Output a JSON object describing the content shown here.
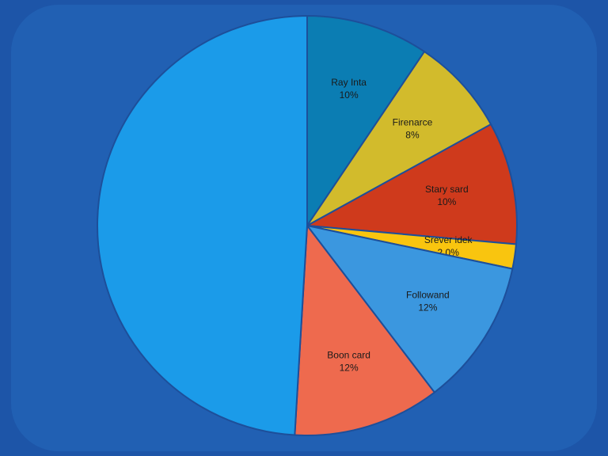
{
  "chart_data": {
    "type": "pie",
    "categories": [
      "Ray Inta",
      "Firenarce",
      "Stary sard",
      "Srever idek",
      "Followand",
      "Boon card",
      null
    ],
    "values": [
      10,
      8,
      10,
      2.0,
      12,
      12,
      52
    ],
    "value_labels": [
      "10%",
      "8%",
      "10%",
      "2.0%",
      "12%",
      "12%",
      null
    ],
    "colors": [
      "#0b7db3",
      "#d2bb2c",
      "#cf3a1c",
      "#f9c50f",
      "#3b97df",
      "#ee6a4e",
      "#1b9be9"
    ]
  }
}
